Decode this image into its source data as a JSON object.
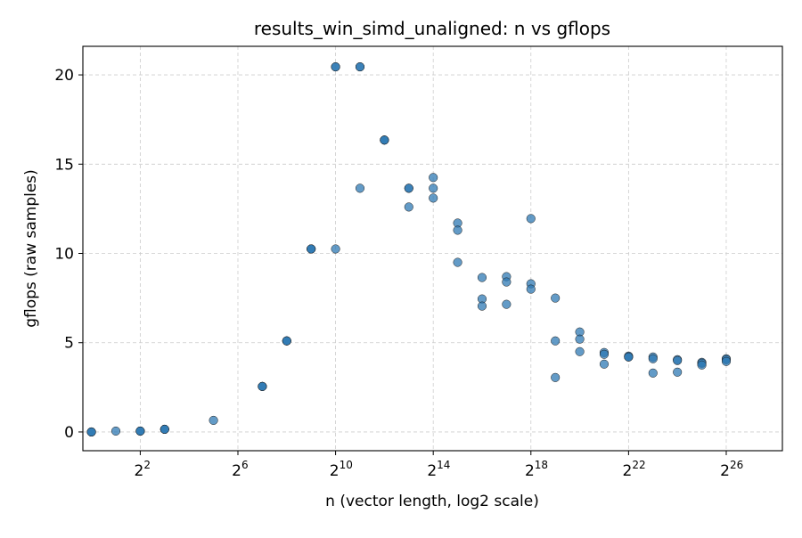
{
  "chart_data": {
    "type": "scatter",
    "title": "results_win_simd_unaligned: n vs gflops",
    "xlabel": "n (vector length, log2 scale)",
    "ylabel": "gflops (raw samples)",
    "x_scale": "log2",
    "xlim_exp": [
      -0.35,
      28.3
    ],
    "ylim": [
      -1.05,
      21.6
    ],
    "x_ticks": [
      {
        "exp": 2,
        "base": "2",
        "sup": "2"
      },
      {
        "exp": 6,
        "base": "2",
        "sup": "6"
      },
      {
        "exp": 10,
        "base": "2",
        "sup": "10"
      },
      {
        "exp": 14,
        "base": "2",
        "sup": "14"
      },
      {
        "exp": 18,
        "base": "2",
        "sup": "18"
      },
      {
        "exp": 22,
        "base": "2",
        "sup": "22"
      },
      {
        "exp": 26,
        "base": "2",
        "sup": "26"
      }
    ],
    "y_ticks": [
      0,
      5,
      10,
      15,
      20
    ],
    "grid": true,
    "marker_color": "#2f79b4",
    "marker_edge": "#1a1a1a",
    "points": [
      {
        "x": 1,
        "y": 0.0
      },
      {
        "x": 1,
        "y": 0.0
      },
      {
        "x": 1,
        "y": 0.0
      },
      {
        "x": 2,
        "y": 0.05
      },
      {
        "x": 4,
        "y": 0.05
      },
      {
        "x": 4,
        "y": 0.05
      },
      {
        "x": 4,
        "y": 0.05
      },
      {
        "x": 8,
        "y": 0.15
      },
      {
        "x": 8,
        "y": 0.15
      },
      {
        "x": 8,
        "y": 0.15
      },
      {
        "x": 32,
        "y": 0.65
      },
      {
        "x": 128,
        "y": 2.55
      },
      {
        "x": 128,
        "y": 2.55
      },
      {
        "x": 128,
        "y": 2.55
      },
      {
        "x": 256,
        "y": 5.1
      },
      {
        "x": 256,
        "y": 5.1
      },
      {
        "x": 256,
        "y": 5.1
      },
      {
        "x": 512,
        "y": 10.25
      },
      {
        "x": 512,
        "y": 10.25
      },
      {
        "x": 512,
        "y": 10.25
      },
      {
        "x": 1024,
        "y": 20.45
      },
      {
        "x": 1024,
        "y": 20.45
      },
      {
        "x": 1024,
        "y": 10.25
      },
      {
        "x": 2048,
        "y": 20.45
      },
      {
        "x": 2048,
        "y": 20.45
      },
      {
        "x": 2048,
        "y": 13.65
      },
      {
        "x": 4096,
        "y": 16.35
      },
      {
        "x": 4096,
        "y": 16.35
      },
      {
        "x": 4096,
        "y": 16.35
      },
      {
        "x": 8192,
        "y": 13.65
      },
      {
        "x": 8192,
        "y": 13.65
      },
      {
        "x": 8192,
        "y": 12.6
      },
      {
        "x": 16384,
        "y": 14.25
      },
      {
        "x": 16384,
        "y": 13.65
      },
      {
        "x": 16384,
        "y": 13.1
      },
      {
        "x": 32768,
        "y": 11.7
      },
      {
        "x": 32768,
        "y": 11.3
      },
      {
        "x": 32768,
        "y": 9.5
      },
      {
        "x": 65536,
        "y": 8.65
      },
      {
        "x": 65536,
        "y": 7.45
      },
      {
        "x": 65536,
        "y": 7.05
      },
      {
        "x": 131072,
        "y": 8.7
      },
      {
        "x": 131072,
        "y": 8.4
      },
      {
        "x": 131072,
        "y": 7.15
      },
      {
        "x": 262144,
        "y": 11.95
      },
      {
        "x": 262144,
        "y": 8.3
      },
      {
        "x": 262144,
        "y": 8.0
      },
      {
        "x": 524288,
        "y": 7.5
      },
      {
        "x": 524288,
        "y": 5.1
      },
      {
        "x": 524288,
        "y": 3.05
      },
      {
        "x": 1048576,
        "y": 5.6
      },
      {
        "x": 1048576,
        "y": 5.2
      },
      {
        "x": 1048576,
        "y": 4.5
      },
      {
        "x": 2097152,
        "y": 4.45
      },
      {
        "x": 2097152,
        "y": 4.35
      },
      {
        "x": 2097152,
        "y": 3.8
      },
      {
        "x": 4194304,
        "y": 4.25
      },
      {
        "x": 4194304,
        "y": 4.2
      },
      {
        "x": 4194304,
        "y": 4.2
      },
      {
        "x": 8388608,
        "y": 4.2
      },
      {
        "x": 8388608,
        "y": 4.1
      },
      {
        "x": 8388608,
        "y": 3.3
      },
      {
        "x": 16777216,
        "y": 4.05
      },
      {
        "x": 16777216,
        "y": 4.0
      },
      {
        "x": 16777216,
        "y": 3.35
      },
      {
        "x": 33554432,
        "y": 3.9
      },
      {
        "x": 33554432,
        "y": 3.85
      },
      {
        "x": 33554432,
        "y": 3.75
      },
      {
        "x": 67108864,
        "y": 4.1
      },
      {
        "x": 67108864,
        "y": 4.05
      },
      {
        "x": 67108864,
        "y": 3.95
      }
    ]
  }
}
